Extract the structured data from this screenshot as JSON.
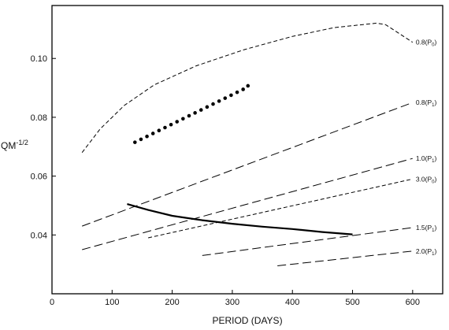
{
  "chart_data": {
    "type": "line",
    "xlabel": "PERIOD (DAYS)",
    "ylabel": "QM",
    "ylabel_sup": "-1/2",
    "xlim": [
      0,
      650
    ],
    "ylim": [
      0.02,
      0.118
    ],
    "x_ticks": [
      0,
      100,
      200,
      300,
      400,
      500,
      600
    ],
    "y_ticks": [
      0.04,
      0.06,
      0.08,
      0.1
    ],
    "y_tick_labels": [
      "0.04",
      "0.06",
      "0.08",
      "0.10"
    ],
    "grid": false,
    "series": [
      {
        "label": "0.8(P0)",
        "style": "short-dash",
        "points": [
          [
            50,
            0.068
          ],
          [
            80,
            0.076
          ],
          [
            120,
            0.084
          ],
          [
            170,
            0.091
          ],
          [
            240,
            0.0975
          ],
          [
            320,
            0.103
          ],
          [
            400,
            0.1075
          ],
          [
            470,
            0.1105
          ],
          [
            540,
            0.112
          ],
          [
            555,
            0.1115
          ],
          [
            600,
            0.1055
          ]
        ]
      },
      {
        "label": "0.8(P1)",
        "style": "long-dash",
        "points": [
          [
            50,
            0.043
          ],
          [
            600,
            0.085
          ]
        ]
      },
      {
        "label": "1.0(P1)",
        "style": "long-dash",
        "points": [
          [
            50,
            0.035
          ],
          [
            600,
            0.066
          ]
        ]
      },
      {
        "label": "3.0(P0)",
        "style": "short-dash",
        "points": [
          [
            160,
            0.039
          ],
          [
            600,
            0.059
          ]
        ]
      },
      {
        "label": "1.5(P1)",
        "style": "long-dash",
        "points": [
          [
            250,
            0.033
          ],
          [
            600,
            0.0425
          ]
        ]
      },
      {
        "label": "2.0(P1)",
        "style": "long-dash",
        "points": [
          [
            375,
            0.0295
          ],
          [
            600,
            0.0345
          ]
        ]
      },
      {
        "label": "",
        "style": "solid",
        "points": [
          [
            125,
            0.0505
          ],
          [
            160,
            0.0485
          ],
          [
            200,
            0.0465
          ],
          [
            250,
            0.045
          ],
          [
            300,
            0.0438
          ],
          [
            350,
            0.0428
          ],
          [
            400,
            0.042
          ],
          [
            450,
            0.041
          ],
          [
            500,
            0.0402
          ]
        ]
      },
      {
        "label": "",
        "style": "dots",
        "points": [
          [
            138,
            0.0715
          ],
          [
            148,
            0.0725
          ],
          [
            158,
            0.0735
          ],
          [
            168,
            0.0745
          ],
          [
            178,
            0.0755
          ],
          [
            188,
            0.0765
          ],
          [
            198,
            0.0775
          ],
          [
            208,
            0.0785
          ],
          [
            218,
            0.0795
          ],
          [
            228,
            0.0805
          ],
          [
            238,
            0.0815
          ],
          [
            248,
            0.0825
          ],
          [
            258,
            0.0835
          ],
          [
            268,
            0.0845
          ],
          [
            278,
            0.0855
          ],
          [
            288,
            0.0865
          ],
          [
            298,
            0.0875
          ],
          [
            308,
            0.0885
          ],
          [
            318,
            0.0895
          ],
          [
            326,
            0.0907
          ]
        ]
      }
    ]
  }
}
